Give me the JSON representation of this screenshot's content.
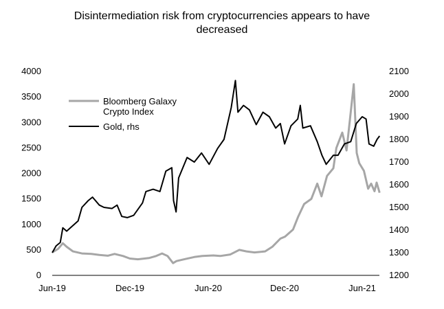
{
  "chart_data": {
    "type": "line",
    "title_lines": [
      "Disintermediation risk from cryptocurrencies appears to have",
      "decreased"
    ],
    "x_tick_labels": [
      "Jun-19",
      "Dec-19",
      "Jun-20",
      "Dec-20",
      "Jun-21"
    ],
    "x_range": [
      "2019-06-01",
      "2021-07-15"
    ],
    "y_left": {
      "min": 0,
      "max": 4000,
      "ticks": [
        0,
        500,
        1000,
        1500,
        2000,
        2500,
        3000,
        3500,
        4000
      ]
    },
    "y_right": {
      "min": 1200,
      "max": 2100,
      "ticks": [
        1200,
        1300,
        1400,
        1500,
        1600,
        1700,
        1800,
        1900,
        2000,
        2100
      ]
    },
    "grid": false,
    "legend_position": "top-left",
    "series": [
      {
        "name": "Bloomberg Galaxy Crypto Index",
        "legend_lines": [
          "Bloomberg Galaxy",
          "Crypto Index"
        ],
        "axis": "left",
        "color": "#a6a6a6",
        "points": [
          [
            "2019-06-01",
            450
          ],
          [
            "2019-06-15",
            520
          ],
          [
            "2019-06-26",
            630
          ],
          [
            "2019-07-05",
            560
          ],
          [
            "2019-07-20",
            470
          ],
          [
            "2019-08-10",
            430
          ],
          [
            "2019-09-01",
            420
          ],
          [
            "2019-09-20",
            400
          ],
          [
            "2019-10-10",
            385
          ],
          [
            "2019-10-26",
            420
          ],
          [
            "2019-11-15",
            380
          ],
          [
            "2019-12-01",
            330
          ],
          [
            "2019-12-20",
            315
          ],
          [
            "2020-01-15",
            340
          ],
          [
            "2020-02-01",
            380
          ],
          [
            "2020-02-15",
            430
          ],
          [
            "2020-02-28",
            380
          ],
          [
            "2020-03-12",
            240
          ],
          [
            "2020-03-20",
            280
          ],
          [
            "2020-04-10",
            320
          ],
          [
            "2020-05-01",
            360
          ],
          [
            "2020-05-20",
            380
          ],
          [
            "2020-06-15",
            390
          ],
          [
            "2020-07-01",
            380
          ],
          [
            "2020-07-25",
            410
          ],
          [
            "2020-08-15",
            500
          ],
          [
            "2020-09-01",
            470
          ],
          [
            "2020-09-20",
            450
          ],
          [
            "2020-10-15",
            470
          ],
          [
            "2020-11-01",
            560
          ],
          [
            "2020-11-20",
            720
          ],
          [
            "2020-12-01",
            760
          ],
          [
            "2020-12-20",
            900
          ],
          [
            "2021-01-01",
            1150
          ],
          [
            "2021-01-15",
            1400
          ],
          [
            "2021-02-01",
            1500
          ],
          [
            "2021-02-15",
            1800
          ],
          [
            "2021-02-25",
            1550
          ],
          [
            "2021-03-10",
            1950
          ],
          [
            "2021-03-25",
            2100
          ],
          [
            "2021-04-01",
            2500
          ],
          [
            "2021-04-15",
            2800
          ],
          [
            "2021-04-25",
            2450
          ],
          [
            "2021-05-05",
            3200
          ],
          [
            "2021-05-12",
            3750
          ],
          [
            "2021-05-19",
            2400
          ],
          [
            "2021-05-25",
            2200
          ],
          [
            "2021-06-05",
            2050
          ],
          [
            "2021-06-15",
            1700
          ],
          [
            "2021-06-22",
            1800
          ],
          [
            "2021-06-30",
            1650
          ],
          [
            "2021-07-05",
            1820
          ],
          [
            "2021-07-12",
            1620
          ]
        ]
      },
      {
        "name": "Gold, rhs",
        "legend_lines": [
          "Gold, rhs"
        ],
        "axis": "right",
        "color": "#000000",
        "points": [
          [
            "2019-06-01",
            1300
          ],
          [
            "2019-06-10",
            1330
          ],
          [
            "2019-06-20",
            1345
          ],
          [
            "2019-06-26",
            1410
          ],
          [
            "2019-07-05",
            1395
          ],
          [
            "2019-07-20",
            1420
          ],
          [
            "2019-08-01",
            1440
          ],
          [
            "2019-08-10",
            1500
          ],
          [
            "2019-08-25",
            1530
          ],
          [
            "2019-09-04",
            1545
          ],
          [
            "2019-09-20",
            1510
          ],
          [
            "2019-10-01",
            1500
          ],
          [
            "2019-10-20",
            1495
          ],
          [
            "2019-11-01",
            1510
          ],
          [
            "2019-11-12",
            1460
          ],
          [
            "2019-11-25",
            1455
          ],
          [
            "2019-12-10",
            1465
          ],
          [
            "2019-12-31",
            1520
          ],
          [
            "2020-01-08",
            1570
          ],
          [
            "2020-01-25",
            1580
          ],
          [
            "2020-02-10",
            1570
          ],
          [
            "2020-02-24",
            1660
          ],
          [
            "2020-03-09",
            1675
          ],
          [
            "2020-03-13",
            1530
          ],
          [
            "2020-03-19",
            1480
          ],
          [
            "2020-03-25",
            1630
          ],
          [
            "2020-04-14",
            1720
          ],
          [
            "2020-05-01",
            1700
          ],
          [
            "2020-05-18",
            1740
          ],
          [
            "2020-06-05",
            1690
          ],
          [
            "2020-06-25",
            1760
          ],
          [
            "2020-07-10",
            1800
          ],
          [
            "2020-07-27",
            1940
          ],
          [
            "2020-08-06",
            2060
          ],
          [
            "2020-08-12",
            1920
          ],
          [
            "2020-08-25",
            1950
          ],
          [
            "2020-09-08",
            1930
          ],
          [
            "2020-09-24",
            1865
          ],
          [
            "2020-10-10",
            1920
          ],
          [
            "2020-10-25",
            1900
          ],
          [
            "2020-11-09",
            1850
          ],
          [
            "2020-11-20",
            1870
          ],
          [
            "2020-11-30",
            1780
          ],
          [
            "2020-12-15",
            1860
          ],
          [
            "2020-12-31",
            1890
          ],
          [
            "2021-01-06",
            1950
          ],
          [
            "2021-01-12",
            1850
          ],
          [
            "2021-01-30",
            1860
          ],
          [
            "2021-02-15",
            1790
          ],
          [
            "2021-02-26",
            1730
          ],
          [
            "2021-03-08",
            1690
          ],
          [
            "2021-03-25",
            1730
          ],
          [
            "2021-04-05",
            1730
          ],
          [
            "2021-04-20",
            1780
          ],
          [
            "2021-05-05",
            1790
          ],
          [
            "2021-05-18",
            1870
          ],
          [
            "2021-06-01",
            1900
          ],
          [
            "2021-06-10",
            1890
          ],
          [
            "2021-06-17",
            1780
          ],
          [
            "2021-06-28",
            1770
          ],
          [
            "2021-07-06",
            1800
          ],
          [
            "2021-07-12",
            1815
          ]
        ]
      }
    ]
  }
}
